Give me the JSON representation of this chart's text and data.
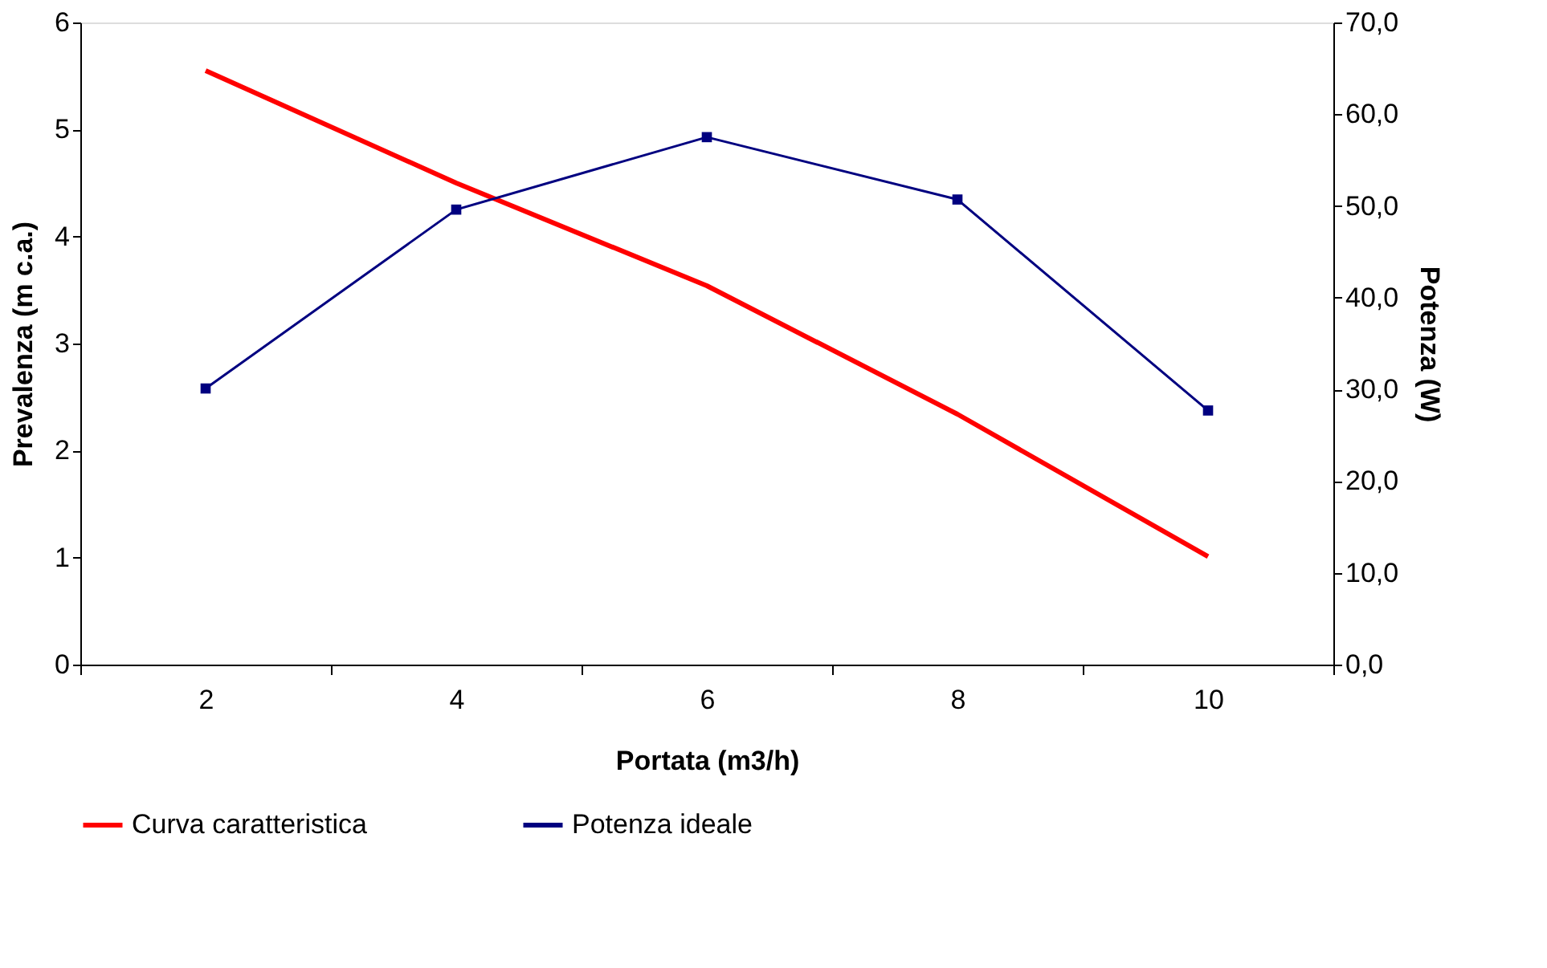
{
  "chart_data": {
    "type": "line",
    "xlabel": "Portata (m3/h)",
    "ylabel": "Prevalenza (m c.a.)",
    "y2label": "Potenza (W)",
    "categories": [
      "2",
      "4",
      "6",
      "8",
      "10"
    ],
    "series": [
      {
        "name": "Curva caratteristica",
        "color": "#ff0000",
        "values": [
          5.55,
          4.5,
          3.54,
          2.34,
          1.01
        ],
        "marker": "none"
      },
      {
        "name": "Potenza ideale",
        "color": "#000080",
        "values": [
          30.1,
          49.6,
          57.5,
          50.7,
          27.7
        ],
        "axis": "y2",
        "marker": "square"
      }
    ],
    "ylim": [
      0,
      6
    ],
    "yticks": [
      0,
      1,
      2,
      3,
      4,
      5,
      6
    ],
    "y2lim": [
      0,
      70
    ],
    "y2ticks": [
      {
        "value": 0,
        "label": "0,0"
      },
      {
        "value": 10,
        "label": "10,0"
      },
      {
        "value": 20,
        "label": "20,0"
      },
      {
        "value": 30,
        "label": "30,0"
      },
      {
        "value": 40,
        "label": "40,0"
      },
      {
        "value": 50,
        "label": "50,0"
      },
      {
        "value": 60,
        "label": "60,0"
      },
      {
        "value": 70,
        "label": "70,0"
      }
    ],
    "grid": false,
    "legend": "bottom"
  }
}
